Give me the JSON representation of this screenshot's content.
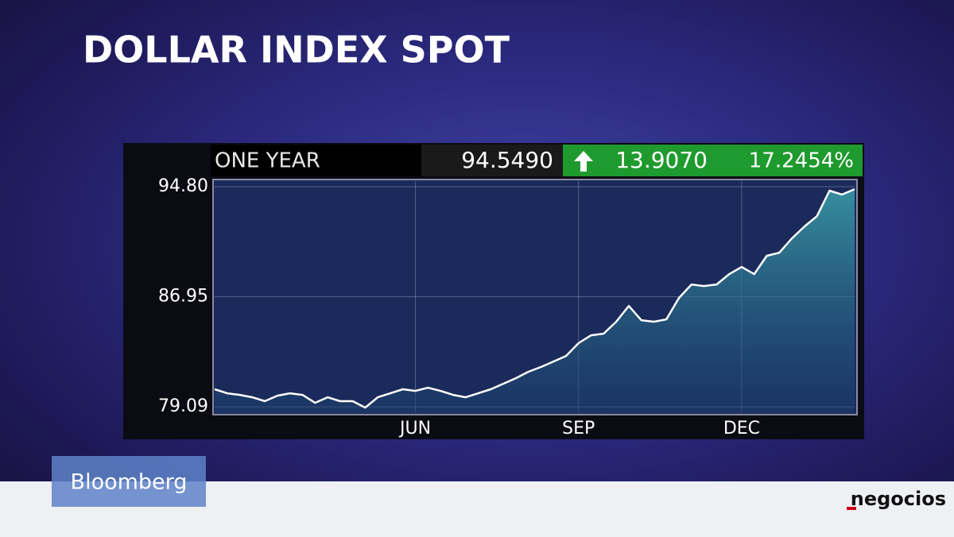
{
  "chart_data": {
    "type": "line",
    "title": "DOLLAR INDEX SPOT",
    "period_label": "ONE YEAR",
    "last_value": "94.5490",
    "change": "13.9070",
    "change_percent": "17.2454%",
    "categories": [
      null,
      null,
      null,
      null,
      null,
      null,
      null,
      null,
      null,
      null,
      null,
      null,
      null,
      null,
      null,
      null,
      "JUN",
      null,
      null,
      null,
      null,
      null,
      null,
      null,
      null,
      null,
      null,
      null,
      null,
      "SEP",
      null,
      null,
      null,
      null,
      null,
      null,
      null,
      null,
      null,
      null,
      null,
      null,
      "DEC",
      null,
      null,
      null,
      null,
      null,
      null,
      null,
      null,
      null
    ],
    "series": [
      {
        "color": "#ffffff",
        "values": [
          80.34,
          80.05,
          79.94,
          79.77,
          79.49,
          79.88,
          80.05,
          79.94,
          79.37,
          79.77,
          79.49,
          79.49,
          79.03,
          79.77,
          80.05,
          80.34,
          80.22,
          80.45,
          80.22,
          79.94,
          79.77,
          80.05,
          80.34,
          80.73,
          81.13,
          81.59,
          81.93,
          82.32,
          82.72,
          83.63,
          84.19,
          84.31,
          85.16,
          86.29,
          85.27,
          85.16,
          85.33,
          86.86,
          87.82,
          87.71,
          87.82,
          88.56,
          89.07,
          88.56,
          89.87,
          90.09,
          91.11,
          91.96,
          92.7,
          94.52,
          94.24,
          94.63
        ]
      }
    ],
    "ylim": [
      78.64,
      95.2
    ],
    "yticks": [
      {
        "value": 79.09,
        "label": "79.09"
      },
      {
        "value": 86.95,
        "label": "86.95"
      },
      {
        "value": 94.8,
        "label": "94.80"
      }
    ],
    "grid": true
  },
  "overlay": {
    "brand": "Bloomberg",
    "source": "negocios"
  }
}
